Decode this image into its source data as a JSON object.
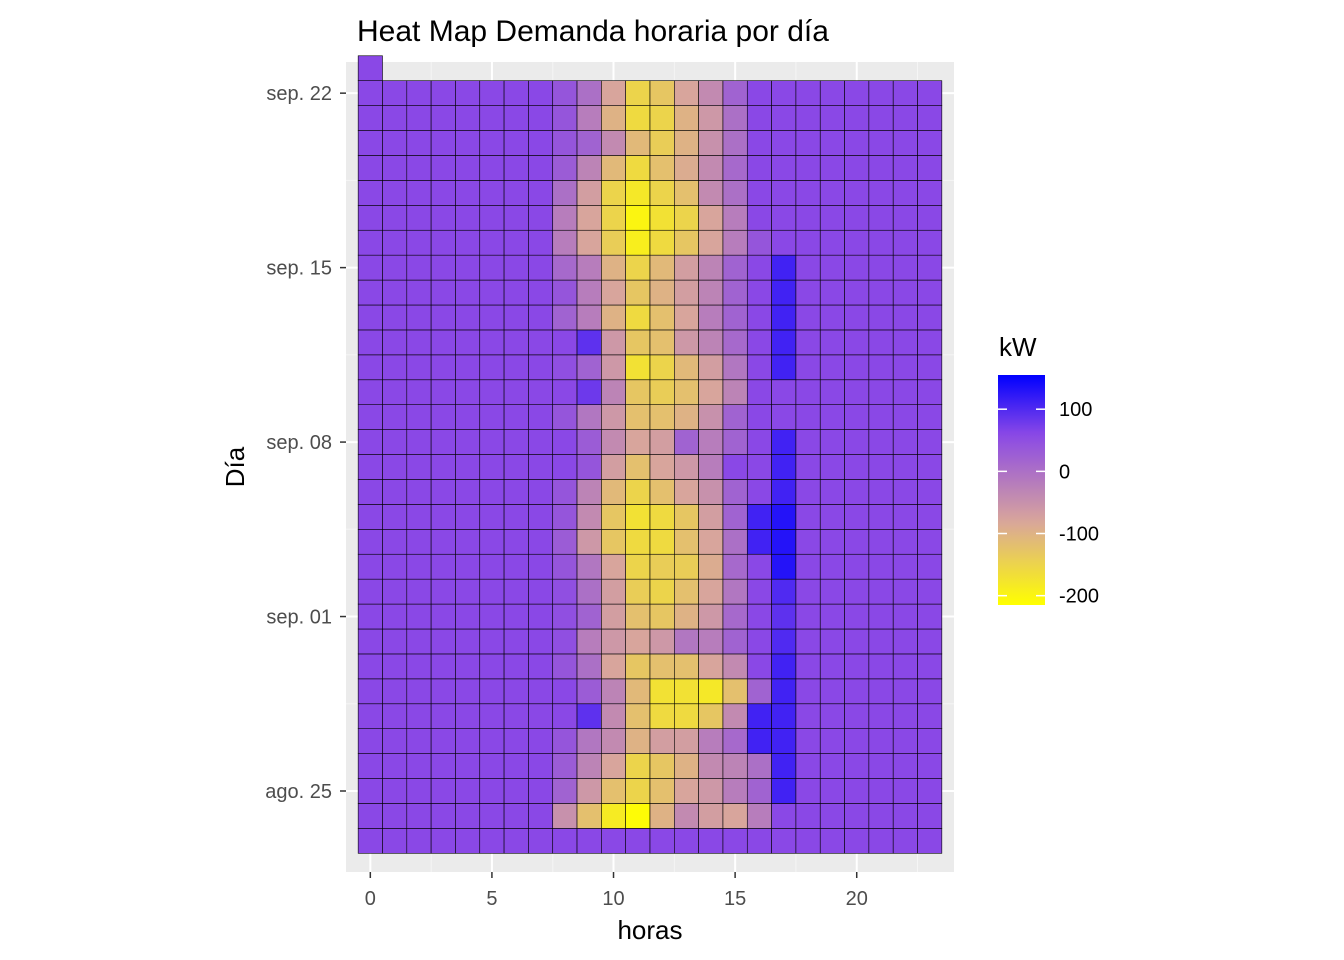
{
  "chart_data": {
    "type": "heatmap",
    "title": "Heat Map Demanda horaria por día",
    "xlabel": "horas",
    "ylabel": "Día",
    "x_ticks": [
      0,
      5,
      10,
      15,
      20
    ],
    "x_range": [
      -1,
      24
    ],
    "y_ticks": [
      {
        "label": "sep. 22",
        "day": 22
      },
      {
        "label": "sep. 15",
        "day": 15
      },
      {
        "label": "sep. 08",
        "day": 8
      },
      {
        "label": "sep. 01",
        "day": 1
      },
      {
        "label": "ago. 25",
        "day": -6
      }
    ],
    "y_range": [
      -9.25,
      23.25
    ],
    "hours": [
      0,
      1,
      2,
      3,
      4,
      5,
      6,
      7,
      8,
      9,
      10,
      11,
      12,
      13,
      14,
      15,
      16,
      17,
      18,
      19,
      20,
      21,
      22,
      23
    ],
    "day_start": -8,
    "day_end": 22,
    "extra_cells": [
      {
        "day": 23,
        "hour": 0,
        "kw": 60
      }
    ],
    "rows": [
      [
        60,
        60,
        60,
        60,
        60,
        60,
        60,
        60,
        60,
        60,
        60,
        60,
        60,
        60,
        60,
        60,
        60,
        60,
        60,
        60,
        60,
        60,
        60,
        60
      ],
      [
        60,
        60,
        60,
        60,
        60,
        60,
        60,
        60,
        -50,
        -120,
        -185,
        -210,
        -100,
        -40,
        -70,
        -80,
        -20,
        60,
        60,
        60,
        60,
        60,
        60,
        60
      ],
      [
        60,
        60,
        60,
        60,
        60,
        60,
        60,
        60,
        20,
        -60,
        -120,
        -150,
        -120,
        -80,
        -60,
        -20,
        20,
        110,
        60,
        60,
        60,
        60,
        60,
        60
      ],
      [
        60,
        60,
        60,
        60,
        60,
        60,
        60,
        60,
        30,
        -30,
        -80,
        -150,
        -130,
        -100,
        -40,
        -30,
        0,
        110,
        60,
        60,
        60,
        60,
        60,
        60
      ],
      [
        60,
        60,
        60,
        60,
        60,
        60,
        60,
        60,
        40,
        -10,
        -40,
        -100,
        -70,
        -70,
        -20,
        10,
        110,
        110,
        60,
        60,
        60,
        60,
        60,
        60
      ],
      [
        60,
        60,
        60,
        60,
        60,
        60,
        60,
        60,
        60,
        90,
        -40,
        -120,
        -160,
        -160,
        -130,
        -40,
        110,
        110,
        60,
        60,
        60,
        60,
        60,
        60
      ],
      [
        60,
        60,
        60,
        60,
        60,
        60,
        60,
        60,
        60,
        30,
        -30,
        -110,
        -170,
        -170,
        -180,
        -120,
        20,
        110,
        60,
        60,
        60,
        60,
        60,
        60
      ],
      [
        60,
        60,
        60,
        60,
        60,
        60,
        60,
        60,
        40,
        0,
        -80,
        -130,
        -120,
        -120,
        -80,
        -40,
        60,
        110,
        60,
        60,
        60,
        60,
        60,
        60
      ],
      [
        60,
        60,
        60,
        60,
        60,
        60,
        60,
        60,
        50,
        -20,
        -60,
        -80,
        -60,
        -10,
        -20,
        20,
        60,
        100,
        60,
        60,
        60,
        60,
        60,
        60
      ],
      [
        60,
        60,
        60,
        60,
        60,
        60,
        60,
        60,
        50,
        20,
        -70,
        -120,
        -130,
        -100,
        -60,
        10,
        60,
        90,
        60,
        60,
        60,
        60,
        60,
        60
      ],
      [
        60,
        60,
        60,
        60,
        60,
        60,
        60,
        60,
        50,
        0,
        -70,
        -140,
        -150,
        -120,
        -80,
        -10,
        60,
        100,
        60,
        60,
        60,
        60,
        60,
        60
      ],
      [
        60,
        60,
        60,
        60,
        60,
        60,
        60,
        60,
        40,
        -10,
        -80,
        -150,
        -140,
        -140,
        -90,
        10,
        60,
        130,
        60,
        60,
        60,
        60,
        60,
        60
      ],
      [
        60,
        60,
        60,
        60,
        60,
        60,
        60,
        60,
        30,
        -60,
        -130,
        -160,
        -160,
        -120,
        -80,
        0,
        110,
        130,
        60,
        60,
        60,
        60,
        60,
        60
      ],
      [
        60,
        60,
        60,
        60,
        60,
        60,
        60,
        60,
        40,
        -40,
        -130,
        -170,
        -160,
        -130,
        -70,
        20,
        110,
        130,
        60,
        60,
        60,
        60,
        60,
        60
      ],
      [
        60,
        60,
        60,
        60,
        60,
        60,
        60,
        60,
        40,
        -30,
        -110,
        -150,
        -120,
        -80,
        -50,
        20,
        60,
        110,
        60,
        60,
        60,
        60,
        60,
        60
      ],
      [
        60,
        60,
        60,
        60,
        60,
        60,
        60,
        60,
        60,
        40,
        -70,
        -120,
        -80,
        -60,
        -20,
        60,
        60,
        110,
        60,
        60,
        60,
        60,
        60,
        60
      ],
      [
        60,
        60,
        60,
        60,
        60,
        60,
        60,
        60,
        60,
        30,
        -40,
        -80,
        -70,
        20,
        -20,
        20,
        60,
        110,
        60,
        60,
        60,
        60,
        60,
        60
      ],
      [
        60,
        60,
        60,
        60,
        60,
        60,
        60,
        60,
        40,
        -10,
        -60,
        -120,
        -120,
        -100,
        -50,
        20,
        60,
        60,
        60,
        60,
        60,
        60,
        60,
        60
      ],
      [
        60,
        60,
        60,
        60,
        60,
        60,
        60,
        60,
        60,
        80,
        -30,
        -130,
        -140,
        -120,
        -80,
        -30,
        60,
        60,
        60,
        60,
        60,
        60,
        60,
        60
      ],
      [
        60,
        60,
        60,
        60,
        60,
        60,
        60,
        60,
        50,
        20,
        -60,
        -170,
        -150,
        -110,
        -70,
        -10,
        60,
        110,
        60,
        60,
        60,
        60,
        60,
        60
      ],
      [
        60,
        60,
        60,
        60,
        60,
        60,
        60,
        60,
        60,
        90,
        -60,
        -130,
        -120,
        -60,
        -30,
        10,
        60,
        110,
        60,
        60,
        60,
        60,
        60,
        60
      ],
      [
        60,
        60,
        60,
        60,
        60,
        60,
        60,
        60,
        20,
        -20,
        -100,
        -160,
        -120,
        -80,
        -20,
        20,
        60,
        110,
        60,
        60,
        60,
        60,
        60,
        60
      ],
      [
        60,
        60,
        60,
        60,
        60,
        60,
        60,
        60,
        40,
        -20,
        -80,
        -130,
        -100,
        -70,
        -30,
        20,
        60,
        110,
        60,
        60,
        60,
        60,
        60,
        60
      ],
      [
        60,
        60,
        60,
        60,
        60,
        60,
        60,
        60,
        10,
        -20,
        -100,
        -150,
        -110,
        -70,
        -30,
        20,
        60,
        110,
        60,
        60,
        60,
        60,
        60,
        60
      ],
      [
        60,
        60,
        60,
        60,
        60,
        60,
        60,
        60,
        -20,
        -80,
        -140,
        -190,
        -160,
        -130,
        -80,
        -20,
        40,
        60,
        60,
        60,
        60,
        60,
        60,
        60
      ],
      [
        60,
        60,
        60,
        60,
        60,
        60,
        60,
        60,
        -20,
        -80,
        -150,
        -200,
        -170,
        -150,
        -80,
        -20,
        60,
        60,
        60,
        60,
        60,
        60,
        60,
        60
      ],
      [
        60,
        60,
        60,
        60,
        60,
        60,
        60,
        60,
        0,
        -70,
        -150,
        -180,
        -150,
        -120,
        -40,
        0,
        60,
        60,
        60,
        60,
        60,
        60,
        60,
        60
      ],
      [
        60,
        60,
        60,
        60,
        60,
        60,
        60,
        60,
        30,
        -30,
        -110,
        -160,
        -120,
        -90,
        -40,
        10,
        60,
        60,
        60,
        60,
        60,
        60,
        60,
        60
      ],
      [
        60,
        60,
        60,
        60,
        60,
        60,
        60,
        60,
        40,
        20,
        -40,
        -110,
        -140,
        -100,
        -50,
        0,
        60,
        60,
        60,
        60,
        60,
        60,
        60,
        60
      ],
      [
        60,
        60,
        60,
        60,
        60,
        60,
        60,
        60,
        40,
        -20,
        -100,
        -160,
        -150,
        -100,
        -60,
        0,
        60,
        60,
        60,
        60,
        60,
        60,
        60,
        60
      ],
      [
        60,
        60,
        60,
        60,
        60,
        60,
        60,
        60,
        40,
        0,
        -80,
        -150,
        -130,
        -80,
        -40,
        20,
        60,
        60,
        60,
        60,
        60,
        60,
        60,
        60
      ]
    ],
    "legend": {
      "title": "kW",
      "placement": "right",
      "ticks": [
        100,
        0,
        -100,
        -200
      ],
      "tick_labels": [
        "100",
        "0",
        "-100",
        "-200"
      ],
      "min": -215,
      "max": 155
    },
    "colors": {
      "low": "#FFFF00",
      "mid_low": "#D8A59C",
      "mid": "#8A48E6",
      "high": "#0000FF",
      "panel_bg": "#EBEBEB",
      "grid_major": "#FFFFFF",
      "grid_minor": "#F5F5F5"
    },
    "grid": true
  }
}
